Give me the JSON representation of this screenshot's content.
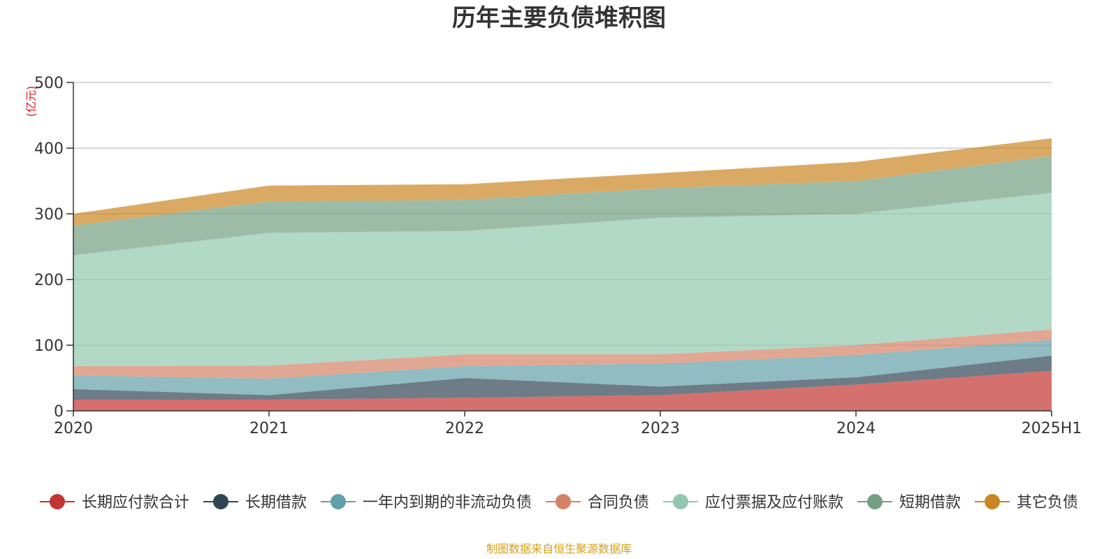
{
  "chart_data": {
    "type": "area",
    "stacked": true,
    "title": "历年主要负债堆积图",
    "unit_label": "(亿元)",
    "x": [
      "2020",
      "2021",
      "2022",
      "2023",
      "2024",
      "2025H1"
    ],
    "ylim": [
      0,
      500
    ],
    "yticks": [
      "0",
      "100",
      "200",
      "300",
      "400",
      "500"
    ],
    "grid": true,
    "legend_position": "bottom",
    "series": [
      {
        "name": "长期应付款合计",
        "color": "#c23531",
        "values": [
          17,
          17,
          20,
          24,
          40,
          61
        ]
      },
      {
        "name": "长期借款",
        "color": "#2f4554",
        "values": [
          16,
          7,
          30,
          13,
          11,
          23
        ]
      },
      {
        "name": "一年内到期的非流动负债",
        "color": "#61a0a8",
        "values": [
          21,
          25,
          18,
          35,
          34,
          24
        ]
      },
      {
        "name": "合同负债",
        "color": "#d48265",
        "values": [
          14,
          20,
          18,
          14,
          15,
          16
        ]
      },
      {
        "name": "应付票据及应付账款",
        "color": "#91c7ae",
        "values": [
          169,
          202,
          188,
          208,
          200,
          208
        ]
      },
      {
        "name": "短期借款",
        "color": "#749f83",
        "values": [
          45,
          48,
          47,
          45,
          50,
          56
        ]
      },
      {
        "name": "其它负债",
        "color": "#ca8622",
        "values": [
          18,
          24,
          24,
          23,
          29,
          27
        ]
      }
    ],
    "source_note": "制图数据来自恒生聚源数据库"
  }
}
